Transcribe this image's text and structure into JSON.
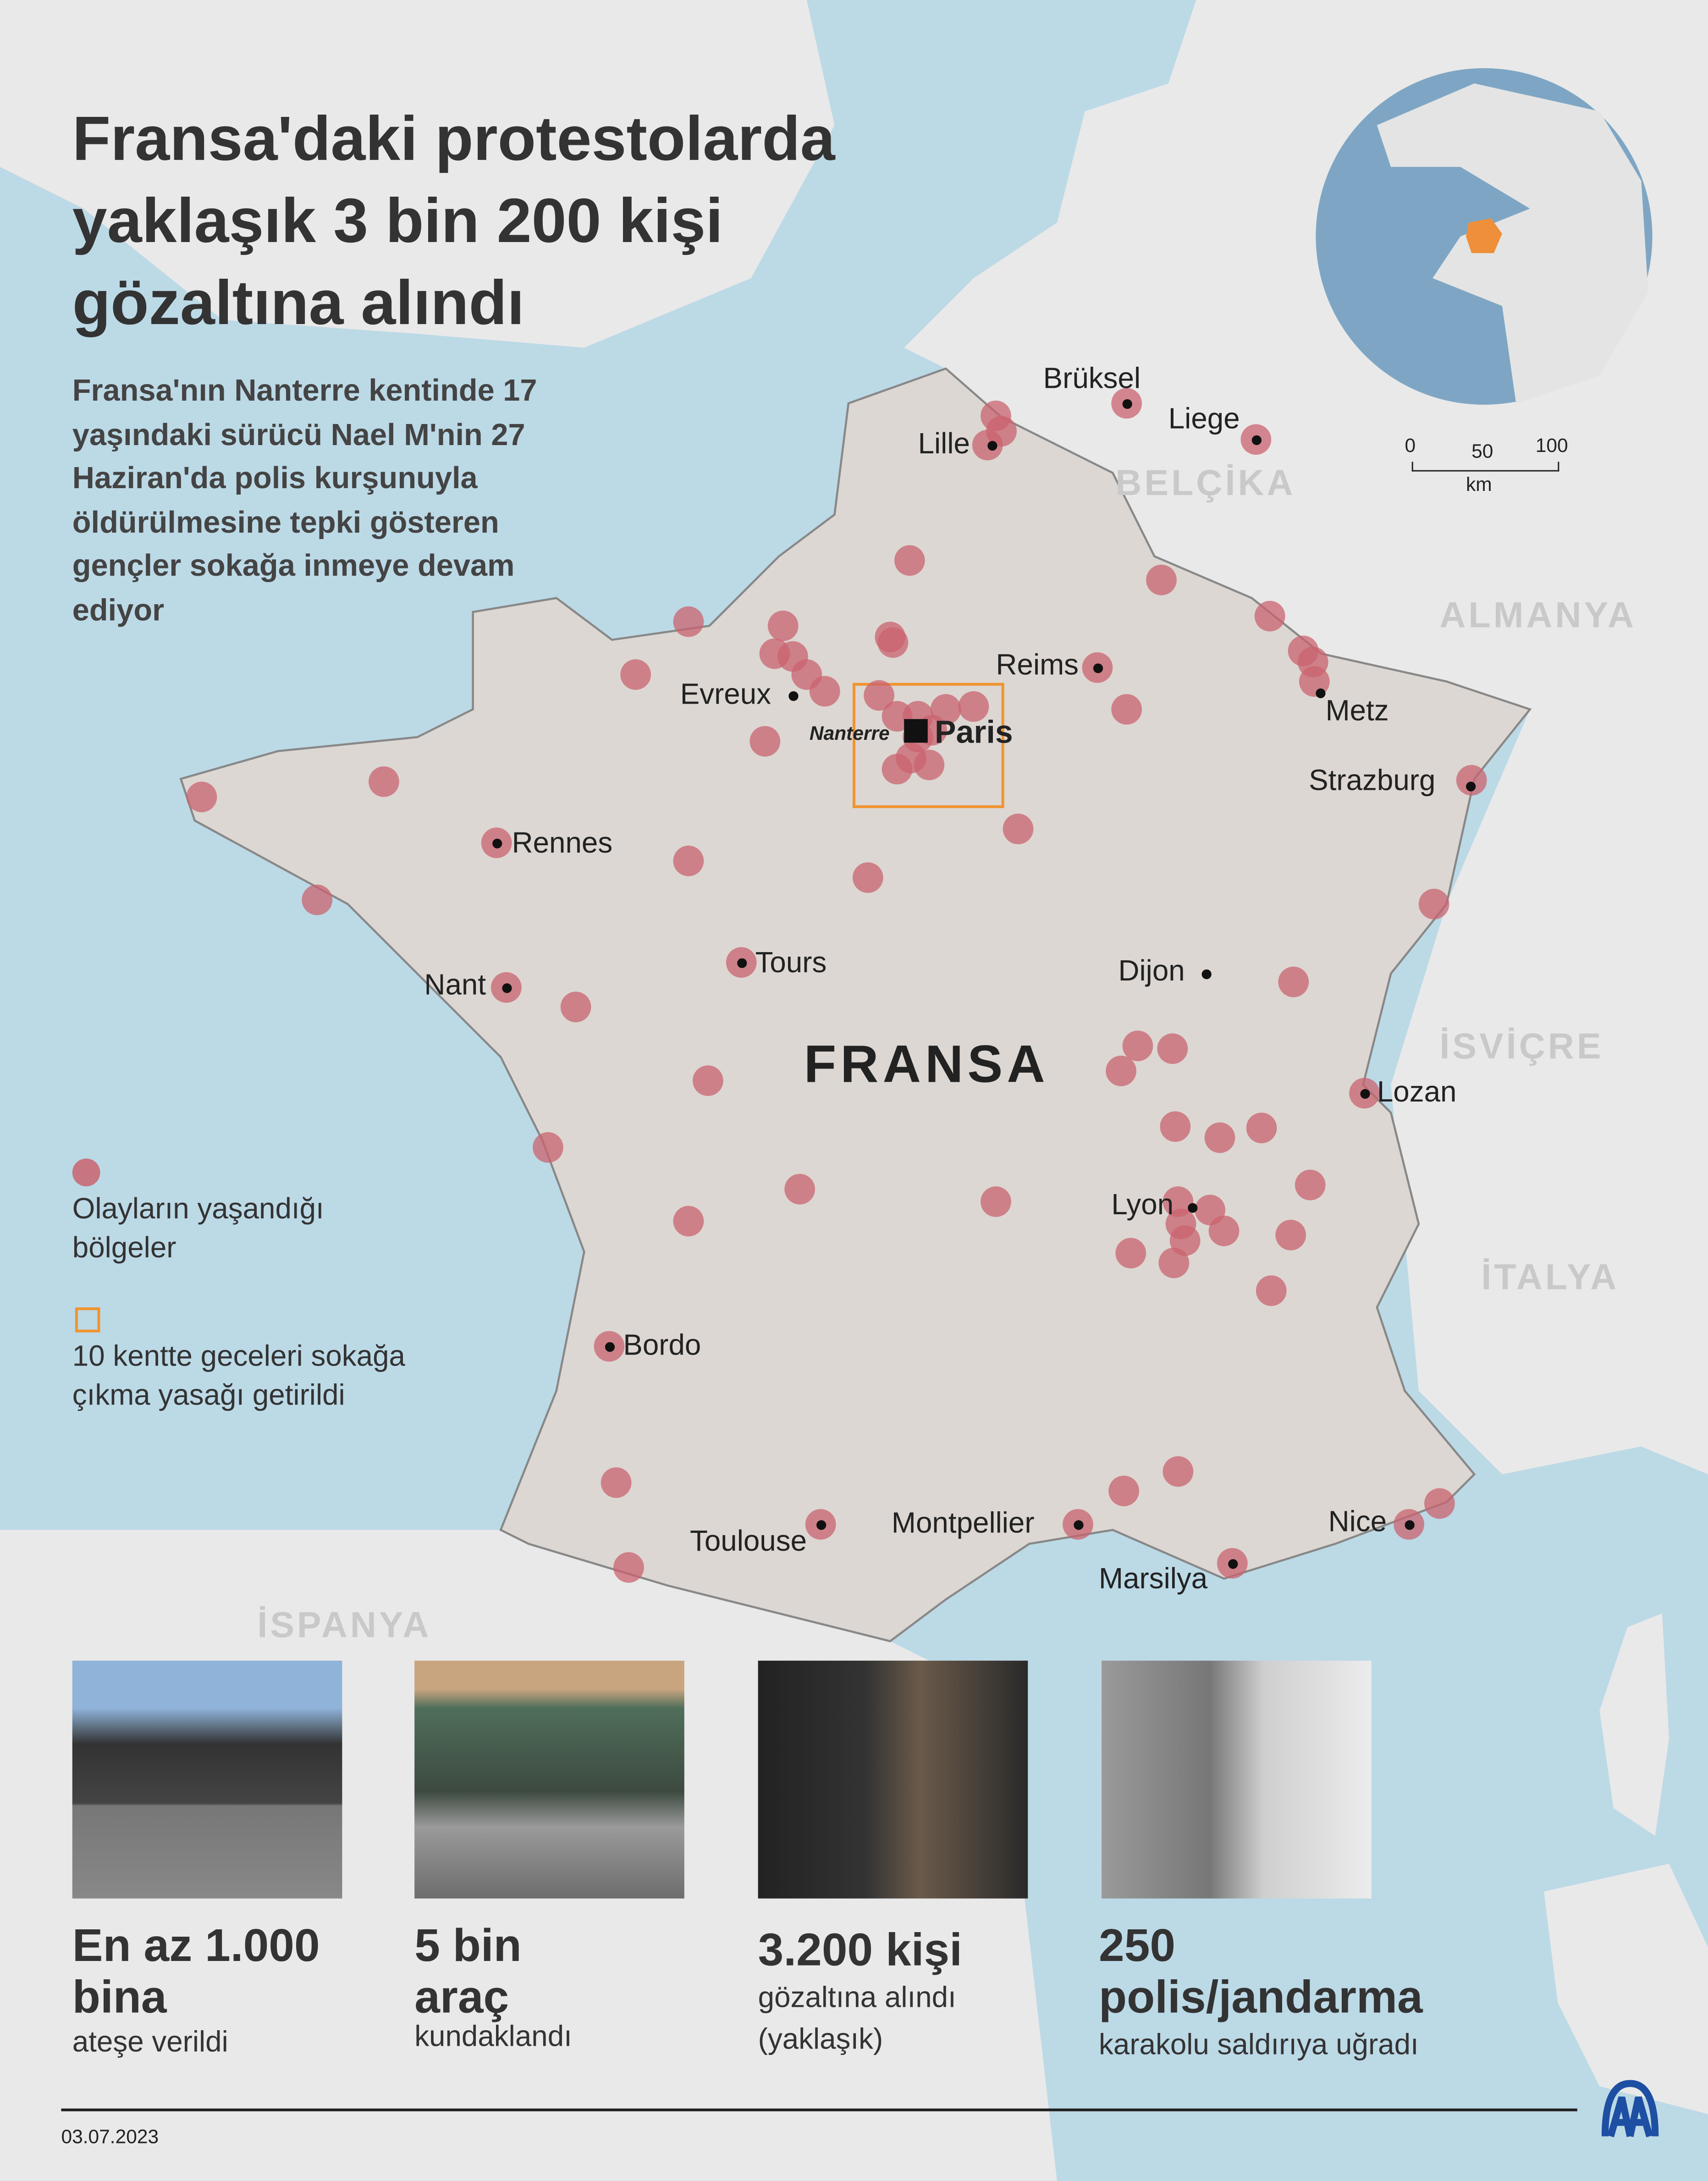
{
  "title": "Fransa'daki protestolarda yaklaşık 3 bin 200 kişi gözaltına alındı",
  "subtitle": "Fransa'nın Nanterre kentinde 17 yaşındaki sürücü Nael M'nin 27 Haziran'da polis kurşunuyla öldürülmesine tepki gösteren gençler sokağa inmeye devam ediyor",
  "colors": {
    "sea": "#bcd9e6",
    "land": "#e9e9e9",
    "france": "#dcd7d2",
    "incident": "#c9636f",
    "curfew": "#f0942f",
    "globe_france": "#ef8f3a"
  },
  "countries": {
    "belgium": "BELÇİKA",
    "germany": "ALMANYA",
    "switzerland": "İSVİÇRE",
    "italy": "İTALYA",
    "spain": "İSPANYA",
    "france": "FRANSA"
  },
  "cities": {
    "brussels": "Brüksel",
    "liege": "Liege",
    "lille": "Lille",
    "reims": "Reims",
    "evreux": "Evreux",
    "nanterre": "Nanterre",
    "paris": "Paris",
    "metz": "Metz",
    "strasbourg": "Strazburg",
    "rennes": "Rennes",
    "tours": "Tours",
    "nantes": "Nant",
    "dijon": "Dijon",
    "lausanne": "Lozan",
    "lyon": "Lyon",
    "bordeaux": "Bordo",
    "toulouse": "Toulouse",
    "montpellier": "Montpellier",
    "nice": "Nice",
    "marseille": "Marsilya"
  },
  "scale_bar": {
    "ticks": [
      "0",
      "50",
      "100"
    ],
    "unit": "km"
  },
  "legend": {
    "incidents": "Olayların yaşandığı bölgeler",
    "curfew": "10 kentte geceleri sokağa çıkma yasağı getirildi"
  },
  "stats": [
    {
      "big": "En az 1.000 bina",
      "small": "ateşe verildi",
      "photo": "burned building"
    },
    {
      "big": "5 bin araç",
      "small": "kundaklandı",
      "photo": "burned bus"
    },
    {
      "big": "3.200 kişi",
      "small": "gözaltına alındı (yaklaşık)",
      "photo": "police detention"
    },
    {
      "big": "250 polis/jandarma",
      "small": "karakolu saldırıya uğradı",
      "photo": "broken glass"
    }
  ],
  "date": "03.07.2023",
  "logo": "AA"
}
